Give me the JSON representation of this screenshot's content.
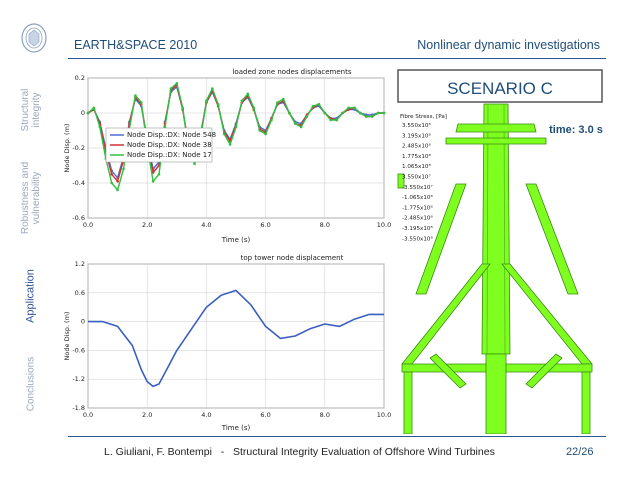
{
  "header": {
    "title": "EARTH&SPACE 2010",
    "section": "Nonlinear dynamic investigations"
  },
  "sidebar": {
    "items": [
      {
        "label": "Structural\nintegrity",
        "active": false
      },
      {
        "label": "Robustness and\nvulnerability",
        "active": false
      },
      {
        "label": "Application",
        "active": true
      },
      {
        "label": "Conclusions",
        "active": false
      }
    ]
  },
  "scenario": {
    "title": "SCENARIO C",
    "time": "time: 3.0 s"
  },
  "stress_legend": {
    "title": "Fibre Stress, [Pa]",
    "values": [
      "3.550x10⁸",
      "3.195x10⁸",
      "2.485x10⁸",
      "1.775x10⁸",
      "1.065x10⁸",
      "3.550x10⁷",
      "-3.550x10⁷",
      "-1.065x10⁸",
      "-1.775x10⁸",
      "-2.485x10⁸",
      "-3.195x10⁸",
      "-3.550x10⁸"
    ]
  },
  "footer": {
    "text": "L. Giuliani, F. Bontempi   -   Structural Integrity Evaluation of Offshore Wind Turbines",
    "page": "22/26"
  },
  "colors": {
    "accent": "#1f4e79",
    "structure": "#7fff20",
    "series_blue": "#4f6fd0",
    "series_red": "#d03030",
    "series_green": "#30c040"
  },
  "chart_data": [
    {
      "type": "line",
      "title": "loaded zone nodes displacements",
      "xlabel": "Time (s)",
      "ylabel": "Node Disp. (m)",
      "xlim": [
        0,
        10
      ],
      "ylim": [
        -0.6,
        0.2
      ],
      "xticks": [
        "0.0",
        "2.0",
        "4.0",
        "6.0",
        "8.0",
        "10.0"
      ],
      "yticks": [
        "0.2",
        "0",
        "-0.2",
        "-0.4",
        "-0.6"
      ],
      "legend_position": "left-middle",
      "x": [
        0,
        0.2,
        0.4,
        0.6,
        0.8,
        1.0,
        1.2,
        1.4,
        1.6,
        1.8,
        2.0,
        2.2,
        2.4,
        2.6,
        2.8,
        3.0,
        3.2,
        3.4,
        3.6,
        3.8,
        4.0,
        4.2,
        4.4,
        4.6,
        4.8,
        5.0,
        5.2,
        5.4,
        5.6,
        5.8,
        6.0,
        6.2,
        6.4,
        6.6,
        6.8,
        7.0,
        7.2,
        7.4,
        7.6,
        7.8,
        8.0,
        8.2,
        8.4,
        8.6,
        8.8,
        9.0,
        9.2,
        9.4,
        9.6,
        9.8,
        10.0
      ],
      "series": [
        {
          "name": "Node Disp.:DX: Node 548",
          "color": "#4f6fd0",
          "values": [
            0,
            0.02,
            -0.05,
            -0.2,
            -0.33,
            -0.37,
            -0.25,
            -0.05,
            0.08,
            0.04,
            -0.15,
            -0.32,
            -0.28,
            -0.05,
            0.12,
            0.15,
            0.02,
            -0.18,
            -0.25,
            -0.12,
            0.06,
            0.12,
            0.04,
            -0.1,
            -0.15,
            -0.06,
            0.06,
            0.09,
            0.02,
            -0.08,
            -0.1,
            -0.03,
            0.05,
            0.06,
            0,
            -0.05,
            -0.06,
            -0.01,
            0.03,
            0.04,
            0,
            -0.03,
            -0.03,
            0,
            0.02,
            0.02,
            0,
            -0.01,
            -0.01,
            0,
            0
          ]
        },
        {
          "name": "Node Disp.:DX: Node 38",
          "color": "#d03030",
          "values": [
            0,
            0.02,
            -0.06,
            -0.22,
            -0.35,
            -0.39,
            -0.27,
            -0.06,
            0.09,
            0.05,
            -0.16,
            -0.34,
            -0.3,
            -0.06,
            0.13,
            0.16,
            0.02,
            -0.19,
            -0.26,
            -0.13,
            0.06,
            0.13,
            0.04,
            -0.11,
            -0.16,
            -0.07,
            0.06,
            0.1,
            0.02,
            -0.09,
            -0.11,
            -0.03,
            0.05,
            0.07,
            0,
            -0.06,
            -0.07,
            -0.01,
            0.03,
            0.05,
            0,
            -0.03,
            -0.04,
            0,
            0.02,
            0.03,
            0,
            -0.02,
            -0.02,
            0,
            0
          ]
        },
        {
          "name": "Node Disp.:DX: Node 17",
          "color": "#30c040",
          "values": [
            0,
            0.03,
            -0.08,
            -0.26,
            -0.4,
            -0.44,
            -0.32,
            -0.09,
            0.1,
            0.06,
            -0.19,
            -0.39,
            -0.35,
            -0.08,
            0.14,
            0.17,
            0.03,
            -0.21,
            -0.29,
            -0.15,
            0.07,
            0.14,
            0.05,
            -0.12,
            -0.18,
            -0.08,
            0.07,
            0.11,
            0.03,
            -0.1,
            -0.12,
            -0.04,
            0.06,
            0.08,
            0,
            -0.06,
            -0.08,
            -0.02,
            0.04,
            0.05,
            0,
            -0.04,
            -0.04,
            0,
            0.03,
            0.03,
            0,
            -0.02,
            -0.02,
            0,
            0
          ]
        }
      ]
    },
    {
      "type": "line",
      "title": "top tower node displacement",
      "xlabel": "Time (s)",
      "ylabel": "Node Disp. (m)",
      "xlim": [
        0,
        10
      ],
      "ylim": [
        -1.8,
        1.2
      ],
      "xticks": [
        "0.0",
        "2.0",
        "4.0",
        "6.0",
        "8.0",
        "10.0"
      ],
      "yticks": [
        "1.2",
        "0.6",
        "0",
        "-0.6",
        "-1.2",
        "-1.8"
      ],
      "x": [
        0,
        0.5,
        1.0,
        1.5,
        1.8,
        2.0,
        2.2,
        2.4,
        2.7,
        3.0,
        3.5,
        4.0,
        4.5,
        5.0,
        5.5,
        6.0,
        6.5,
        7.0,
        7.5,
        8.0,
        8.5,
        9.0,
        9.5,
        10.0
      ],
      "series": [
        {
          "name": "",
          "color": "#3a5fc0",
          "values": [
            0,
            0,
            -0.1,
            -0.5,
            -1.0,
            -1.25,
            -1.35,
            -1.3,
            -0.95,
            -0.6,
            -0.15,
            0.3,
            0.55,
            0.65,
            0.35,
            -0.1,
            -0.35,
            -0.3,
            -0.15,
            -0.05,
            -0.1,
            0.05,
            0.15,
            0.15
          ]
        }
      ]
    }
  ]
}
